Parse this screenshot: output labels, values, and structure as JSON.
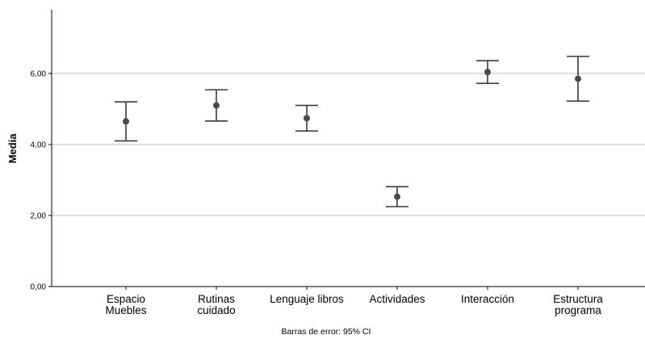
{
  "chart_data": {
    "type": "errorbar",
    "title": "",
    "xlabel": "",
    "ylabel": "Media",
    "footnote": "Barras de error: 95% CI",
    "ylim": [
      0,
      7.5
    ],
    "yticks": [
      {
        "value": 0,
        "label": "0,00"
      },
      {
        "value": 2,
        "label": "2,00"
      },
      {
        "value": 4,
        "label": "4,00"
      },
      {
        "value": 6,
        "label": "6,00"
      }
    ],
    "grid": true,
    "categories": [
      {
        "lines": [
          "Espacio",
          "Muebles"
        ],
        "mean": 4.65,
        "lower": 4.1,
        "upper": 5.2
      },
      {
        "lines": [
          "Rutinas",
          "cuidado"
        ],
        "mean": 5.1,
        "lower": 4.66,
        "upper": 5.54
      },
      {
        "lines": [
          "Lenguaje libros"
        ],
        "mean": 4.74,
        "lower": 4.38,
        "upper": 5.1
      },
      {
        "lines": [
          "Actividades"
        ],
        "mean": 2.53,
        "lower": 2.25,
        "upper": 2.81
      },
      {
        "lines": [
          "Interacción"
        ],
        "mean": 6.04,
        "lower": 5.72,
        "upper": 6.36
      },
      {
        "lines": [
          "Estructura",
          "programa"
        ],
        "mean": 5.85,
        "lower": 5.22,
        "upper": 6.48
      }
    ],
    "colors": {
      "marker": "#4a4a4a",
      "errorbar": "#3a3a3a",
      "grid": "#bfbfbf",
      "axis": "#000000"
    }
  }
}
